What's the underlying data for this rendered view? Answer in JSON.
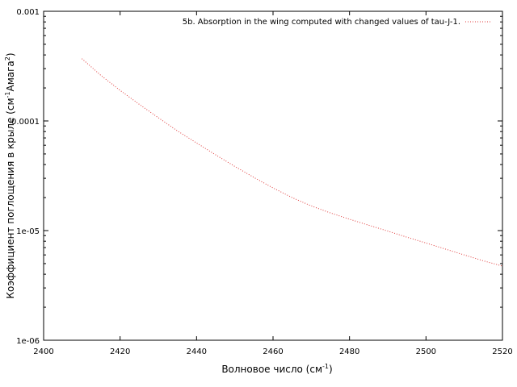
{
  "chart_data": {
    "type": "line",
    "title": "",
    "xlabel": {
      "base": "Волновое число (см",
      "sup": "-1",
      "tail": ")"
    },
    "ylabel": {
      "base": "Коэффициент поглощения в крыле (см",
      "sup1": "-1",
      "mid": "Амага",
      "sup2": "2",
      "tail": ")"
    },
    "xlim": [
      2400,
      2520
    ],
    "ylim": [
      1e-06,
      0.001
    ],
    "yscale": "log",
    "grid": false,
    "legend_position": "top-right",
    "x_ticks": [
      {
        "value": 2400,
        "label": "2400"
      },
      {
        "value": 2420,
        "label": "2420"
      },
      {
        "value": 2440,
        "label": "2440"
      },
      {
        "value": 2460,
        "label": "2460"
      },
      {
        "value": 2480,
        "label": "2480"
      },
      {
        "value": 2500,
        "label": "2500"
      },
      {
        "value": 2520,
        "label": "2520"
      }
    ],
    "y_ticks": [
      {
        "value": 0.001,
        "label": "0.001"
      },
      {
        "value": 0.0001,
        "label": "0.0001"
      },
      {
        "value": 1e-05,
        "label": "1e-05"
      },
      {
        "value": 1e-06,
        "label": "1e-06"
      }
    ],
    "series": [
      {
        "name": "5b. Absorption in the wing computed with changed values of tau-J-1.",
        "color": "#e03c3c",
        "style": "dotted",
        "x": [
          2410,
          2415,
          2420,
          2425,
          2430,
          2435,
          2440,
          2445,
          2450,
          2455,
          2460,
          2465,
          2470,
          2475,
          2480,
          2485,
          2490,
          2495,
          2500,
          2505,
          2510,
          2515,
          2520
        ],
        "y": [
          0.00037,
          0.00026,
          0.00019,
          0.000142,
          0.000107,
          8.1e-05,
          6.3e-05,
          4.9e-05,
          3.85e-05,
          3.05e-05,
          2.45e-05,
          2e-05,
          1.68e-05,
          1.45e-05,
          1.27e-05,
          1.12e-05,
          9.9e-06,
          8.7e-06,
          7.7e-06,
          6.8e-06,
          6e-06,
          5.3e-06,
          4.75e-06
        ]
      }
    ]
  }
}
